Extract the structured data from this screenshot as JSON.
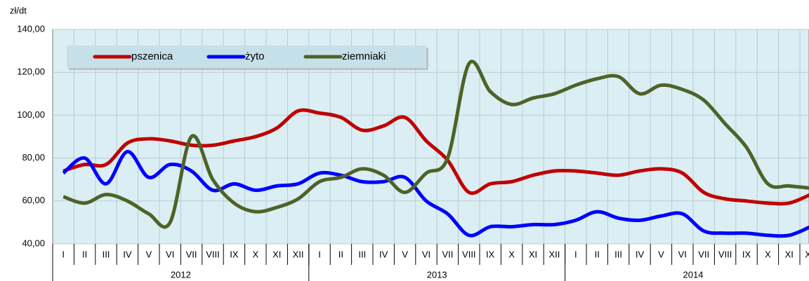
{
  "chart_data": {
    "type": "line",
    "y_unit": "zł/dt",
    "categories": [
      "I",
      "II",
      "III",
      "IV",
      "V",
      "VI",
      "VII",
      "VIII",
      "IX",
      "X",
      "XI",
      "XII",
      "I",
      "II",
      "III",
      "IV",
      "V",
      "VI",
      "VII",
      "VIII",
      "IX",
      "X",
      "XI",
      "XII",
      "I",
      "II",
      "III",
      "IV",
      "V",
      "VI",
      "VII",
      "VIII",
      "IX",
      "X",
      "XI",
      "XII"
    ],
    "year_groups": [
      {
        "label": "2012",
        "months": 12
      },
      {
        "label": "2013",
        "months": 12
      },
      {
        "label": "2014",
        "months": 12
      }
    ],
    "series": [
      {
        "name": "pszenica",
        "color": "#c00000",
        "values": [
          74,
          77,
          77,
          87,
          89,
          88,
          86,
          86,
          88,
          90,
          94,
          102,
          101,
          99,
          93,
          95,
          99,
          88,
          79,
          64,
          68,
          69,
          72,
          74,
          74,
          73,
          72,
          74,
          75,
          73,
          64,
          61,
          60,
          59,
          59,
          63
        ]
      },
      {
        "name": "żyto",
        "color": "#0000ff",
        "values": [
          73,
          80,
          68,
          83,
          71,
          77,
          74,
          65,
          68,
          65,
          67,
          68,
          73,
          72,
          69,
          69,
          71,
          60,
          54,
          44,
          48,
          48,
          49,
          49,
          51,
          55,
          52,
          51,
          53,
          54,
          46,
          45,
          45,
          44,
          44,
          48
        ]
      },
      {
        "name": "ziemniaki",
        "color": "#4f6228",
        "values": [
          62,
          59,
          63,
          60,
          54,
          50,
          90,
          70,
          59,
          55,
          57,
          61,
          69,
          71,
          75,
          72,
          64,
          73,
          80,
          124,
          111,
          105,
          108,
          110,
          114,
          117,
          118,
          110,
          114,
          112,
          107,
          96,
          85,
          68,
          67,
          66
        ]
      }
    ],
    "ylim": [
      40,
      140
    ],
    "yticks": [
      {
        "value": 40,
        "label": "40,00"
      },
      {
        "value": 60,
        "label": "60,00"
      },
      {
        "value": 80,
        "label": "80,00"
      },
      {
        "value": 100,
        "label": "100,00"
      },
      {
        "value": 120,
        "label": "120,00"
      },
      {
        "value": 140,
        "label": "140,00"
      }
    ],
    "grid": true,
    "legend": "top-left"
  }
}
